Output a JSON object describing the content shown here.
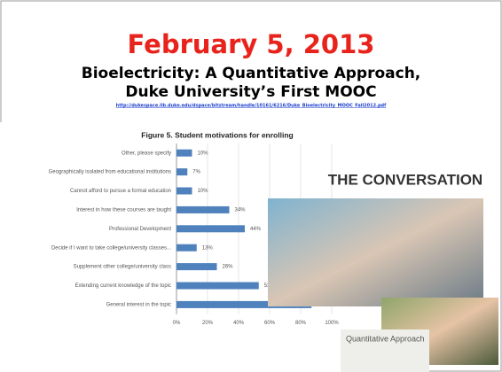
{
  "slide": {
    "title": "February 5, 2013",
    "subtitle_lines": [
      "Bioelectricity: A Quantitative Approach,",
      "Duke University’s First MOOC"
    ],
    "link": "http://dukespace.lib.duke.edu/dspace/bitstream/handle/10161/6216/Duke_Bioelectricity_MOOC_Fall2012.pdf",
    "logo": "THE CONVERSATION",
    "course_panel": "Quantitative Approach"
  },
  "chart_data": {
    "type": "bar",
    "orientation": "horizontal",
    "title": "Figure 5. Student motivations for enrolling",
    "color": "#4f81bd",
    "categories": [
      "Other, please specify",
      "Geographically isolated from educational institutions",
      "Cannot afford to pursue a formal education",
      "Interest in how these courses are taught",
      "Professional Development",
      "Decide if I want to take college/university classes...",
      "Supplement other college/university class",
      "Extending current knowledge of the topic",
      "General interest in the topic"
    ],
    "values": [
      10,
      7,
      10,
      34,
      44,
      13,
      26,
      53,
      87
    ],
    "value_labels": [
      "10%",
      "7%",
      "10%",
      "34%",
      "44%",
      "13%",
      "26%",
      "53%",
      "87%"
    ],
    "xlim": [
      0,
      100
    ],
    "xticks": [
      {
        "value": 0,
        "label": "0%"
      },
      {
        "value": 20,
        "label": "20%"
      },
      {
        "value": 40,
        "label": "40%"
      },
      {
        "value": 60,
        "label": "60%"
      },
      {
        "value": 80,
        "label": "80%"
      },
      {
        "value": 100,
        "label": "100%"
      }
    ]
  }
}
